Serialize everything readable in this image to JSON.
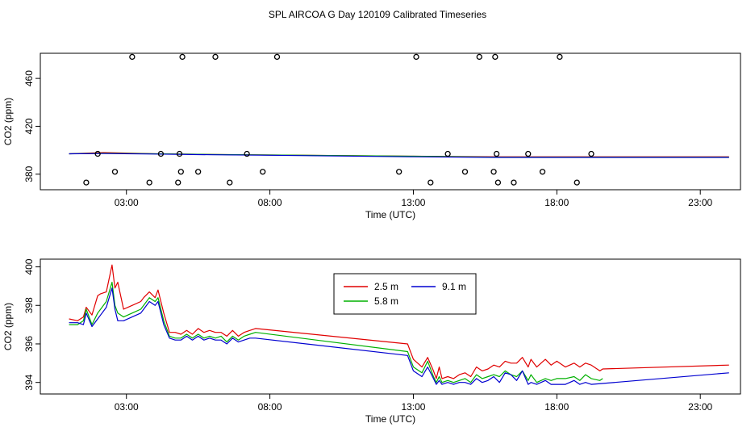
{
  "title": "SPL AIRCOA G  Day 120109  Calibrated Timeseries",
  "colors": {
    "red": "#e00000",
    "green": "#00b000",
    "blue": "#0000d0",
    "ink": "#000000",
    "purple": "#8000a0"
  },
  "chart_data": [
    {
      "id": "top",
      "type": "scatter",
      "xlabel": "Time (UTC)",
      "ylabel": "CO2 (ppm)",
      "xlim": [
        0.0,
        24.4
      ],
      "ylim": [
        367.0,
        481.0
      ],
      "xticks": [
        3,
        8,
        13,
        18,
        23
      ],
      "xtick_labels": [
        "03:00",
        "08:00",
        "13:00",
        "18:00",
        "23:00"
      ],
      "yticks": [
        380,
        420,
        460
      ],
      "ytick_labels": [
        "380",
        "420",
        "460"
      ],
      "points": [
        {
          "x": 1.6,
          "y": 373
        },
        {
          "x": 2.0,
          "y": 397
        },
        {
          "x": 2.6,
          "y": 382
        },
        {
          "x": 3.2,
          "y": 478
        },
        {
          "x": 3.8,
          "y": 373
        },
        {
          "x": 4.2,
          "y": 397
        },
        {
          "x": 4.8,
          "y": 373
        },
        {
          "x": 4.85,
          "y": 397
        },
        {
          "x": 4.9,
          "y": 382
        },
        {
          "x": 4.95,
          "y": 478
        },
        {
          "x": 5.5,
          "y": 382
        },
        {
          "x": 6.1,
          "y": 478
        },
        {
          "x": 6.6,
          "y": 373
        },
        {
          "x": 7.2,
          "y": 397
        },
        {
          "x": 7.75,
          "y": 382
        },
        {
          "x": 8.25,
          "y": 478
        },
        {
          "x": 12.5,
          "y": 382
        },
        {
          "x": 13.1,
          "y": 478
        },
        {
          "x": 13.6,
          "y": 373
        },
        {
          "x": 14.2,
          "y": 397
        },
        {
          "x": 14.8,
          "y": 382
        },
        {
          "x": 15.3,
          "y": 478
        },
        {
          "x": 15.8,
          "y": 382
        },
        {
          "x": 15.85,
          "y": 478
        },
        {
          "x": 15.9,
          "y": 397
        },
        {
          "x": 15.95,
          "y": 373
        },
        {
          "x": 16.5,
          "y": 373
        },
        {
          "x": 17.0,
          "y": 397
        },
        {
          "x": 17.5,
          "y": 382
        },
        {
          "x": 18.1,
          "y": 478
        },
        {
          "x": 18.7,
          "y": 373
        },
        {
          "x": 19.2,
          "y": 397
        }
      ],
      "series": [
        {
          "name": "2.5 m",
          "color": "#e00000",
          "x": [
            1.0,
            2.2,
            4.0,
            6.0,
            8.0,
            13.0,
            16.0,
            19.5,
            24.0
          ],
          "values": [
            397,
            398,
            397,
            396.5,
            396,
            395,
            394.5,
            394.5,
            394.5
          ]
        },
        {
          "name": "5.8 m",
          "color": "#00b000",
          "x": [
            1.0,
            2.2,
            4.0,
            6.0,
            8.0,
            13.0,
            16.0,
            19.5,
            24.0
          ],
          "values": [
            397,
            397.5,
            397,
            396.5,
            396,
            395,
            394.2,
            394.2,
            394.2
          ]
        },
        {
          "name": "9.1 m",
          "color": "#0000d0",
          "x": [
            1.0,
            2.2,
            4.0,
            6.0,
            8.0,
            13.0,
            16.0,
            19.5,
            24.0
          ],
          "values": [
            397,
            397.2,
            396.8,
            396.2,
            395.8,
            394.5,
            394,
            394,
            394
          ]
        }
      ]
    },
    {
      "id": "bottom",
      "type": "line",
      "xlabel": "Time (UTC)",
      "ylabel": "CO2 (ppm)",
      "xlim": [
        0.0,
        24.4
      ],
      "ylim": [
        393.4,
        400.4
      ],
      "xticks": [
        3,
        8,
        13,
        18,
        23
      ],
      "xtick_labels": [
        "03:00",
        "08:00",
        "13:00",
        "18:00",
        "23:00"
      ],
      "yticks": [
        394,
        396,
        398,
        400
      ],
      "ytick_labels": [
        "394",
        "396",
        "398",
        "400"
      ],
      "legend": {
        "position": "top-center",
        "labels": [
          "2.5 m",
          "9.1 m",
          "5.8 m"
        ]
      },
      "series": [
        {
          "name": "2.5 m",
          "color": "#e00000",
          "x": [
            1.0,
            1.3,
            1.5,
            1.6,
            1.8,
            2.0,
            2.1,
            2.3,
            2.5,
            2.6,
            2.7,
            2.9,
            3.2,
            3.5,
            3.6,
            3.8,
            4.0,
            4.1,
            4.3,
            4.5,
            4.7,
            4.9,
            5.1,
            5.3,
            5.5,
            5.7,
            5.9,
            6.1,
            6.3,
            6.5,
            6.7,
            6.9,
            7.1,
            7.3,
            7.5,
            12.8,
            13.0,
            13.3,
            13.5,
            13.7,
            13.8,
            13.9,
            14.0,
            14.2,
            14.4,
            14.6,
            14.8,
            15.0,
            15.2,
            15.4,
            15.6,
            15.8,
            16.0,
            16.2,
            16.4,
            16.6,
            16.8,
            17.0,
            17.1,
            17.3,
            17.6,
            17.8,
            18.0,
            18.3,
            18.6,
            18.8,
            19.0,
            19.2,
            19.5,
            19.6,
            24.0
          ],
          "values": [
            397.3,
            397.2,
            397.4,
            397.9,
            397.5,
            398.5,
            398.6,
            398.7,
            400.1,
            398.9,
            399.2,
            397.8,
            398.0,
            398.2,
            398.4,
            398.7,
            398.4,
            398.8,
            397.6,
            396.6,
            396.6,
            396.5,
            396.7,
            396.5,
            396.8,
            396.6,
            396.7,
            396.6,
            396.6,
            396.4,
            396.7,
            396.4,
            396.6,
            396.7,
            396.8,
            396.0,
            395.2,
            394.8,
            395.3,
            394.6,
            394.2,
            394.8,
            394.2,
            394.3,
            394.2,
            394.4,
            394.5,
            394.3,
            394.8,
            394.6,
            394.7,
            394.9,
            394.8,
            395.1,
            395.0,
            395.0,
            395.3,
            394.8,
            395.2,
            394.8,
            395.2,
            394.9,
            395.1,
            394.8,
            395.0,
            394.8,
            395.0,
            394.9,
            394.6,
            394.7,
            394.9
          ]
        },
        {
          "name": "5.8 m",
          "color": "#00b000",
          "x": [
            1.0,
            1.3,
            1.5,
            1.6,
            1.8,
            2.0,
            2.1,
            2.3,
            2.5,
            2.6,
            2.7,
            2.9,
            3.2,
            3.5,
            3.6,
            3.8,
            4.0,
            4.1,
            4.3,
            4.5,
            4.7,
            4.9,
            5.1,
            5.3,
            5.5,
            5.7,
            5.9,
            6.1,
            6.3,
            6.5,
            6.7,
            6.9,
            7.1,
            7.3,
            7.5,
            12.8,
            13.0,
            13.3,
            13.5,
            13.7,
            13.8,
            13.9,
            14.0,
            14.2,
            14.4,
            14.6,
            14.8,
            15.0,
            15.2,
            15.4,
            15.6,
            15.8,
            16.0,
            16.2,
            16.4,
            16.6,
            16.8,
            17.0,
            17.1,
            17.3,
            17.6,
            17.8,
            18.0,
            18.3,
            18.6,
            18.8,
            19.0,
            19.2,
            19.5,
            19.6
          ],
          "values": [
            397.0,
            397.0,
            397.2,
            397.8,
            397.0,
            397.6,
            397.8,
            398.2,
            399.2,
            398.0,
            397.6,
            397.4,
            397.6,
            397.8,
            398.0,
            398.4,
            398.2,
            398.4,
            397.2,
            396.4,
            396.3,
            396.3,
            396.5,
            396.3,
            396.5,
            396.3,
            396.4,
            396.3,
            396.4,
            396.1,
            396.4,
            396.2,
            396.4,
            396.5,
            396.6,
            395.6,
            394.8,
            394.5,
            395.1,
            394.3,
            394.0,
            394.3,
            394.0,
            394.1,
            394.0,
            394.1,
            394.2,
            394.0,
            394.4,
            394.2,
            394.3,
            394.4,
            394.3,
            394.6,
            394.4,
            394.3,
            394.6,
            394.1,
            394.4,
            394.0,
            394.2,
            394.1,
            394.2,
            394.2,
            394.3,
            394.1,
            394.4,
            394.2,
            394.1,
            394.2
          ]
        },
        {
          "name": "9.1 m",
          "color": "#0000d0",
          "x": [
            1.0,
            1.3,
            1.5,
            1.6,
            1.8,
            2.0,
            2.1,
            2.3,
            2.5,
            2.6,
            2.7,
            2.9,
            3.2,
            3.5,
            3.6,
            3.8,
            4.0,
            4.1,
            4.3,
            4.5,
            4.7,
            4.9,
            5.1,
            5.3,
            5.5,
            5.7,
            5.9,
            6.1,
            6.3,
            6.5,
            6.7,
            6.9,
            7.1,
            7.3,
            7.5,
            12.8,
            13.0,
            13.3,
            13.5,
            13.7,
            13.8,
            13.9,
            14.0,
            14.2,
            14.4,
            14.6,
            14.8,
            15.0,
            15.2,
            15.4,
            15.6,
            15.8,
            16.0,
            16.2,
            16.4,
            16.6,
            16.8,
            17.0,
            17.1,
            17.3,
            17.6,
            17.8,
            18.0,
            18.3,
            18.6,
            18.8,
            19.0,
            19.2,
            24.0
          ],
          "values": [
            397.1,
            397.1,
            397.0,
            397.6,
            396.9,
            397.3,
            397.5,
            397.9,
            398.9,
            397.8,
            397.2,
            397.2,
            397.4,
            397.6,
            397.8,
            398.2,
            398.0,
            398.2,
            397.0,
            396.3,
            396.2,
            396.2,
            396.4,
            396.2,
            396.4,
            396.2,
            396.3,
            396.2,
            396.2,
            396.0,
            396.3,
            396.1,
            396.2,
            396.3,
            396.3,
            395.4,
            394.6,
            394.3,
            394.8,
            394.2,
            393.9,
            394.1,
            393.9,
            394.0,
            393.9,
            394.0,
            394.0,
            393.9,
            394.2,
            394.0,
            394.1,
            394.3,
            394.0,
            394.5,
            394.4,
            394.1,
            394.6,
            393.9,
            394.0,
            393.9,
            394.1,
            393.9,
            393.9,
            393.9,
            394.1,
            393.9,
            394.0,
            393.9,
            394.5
          ]
        }
      ]
    }
  ]
}
